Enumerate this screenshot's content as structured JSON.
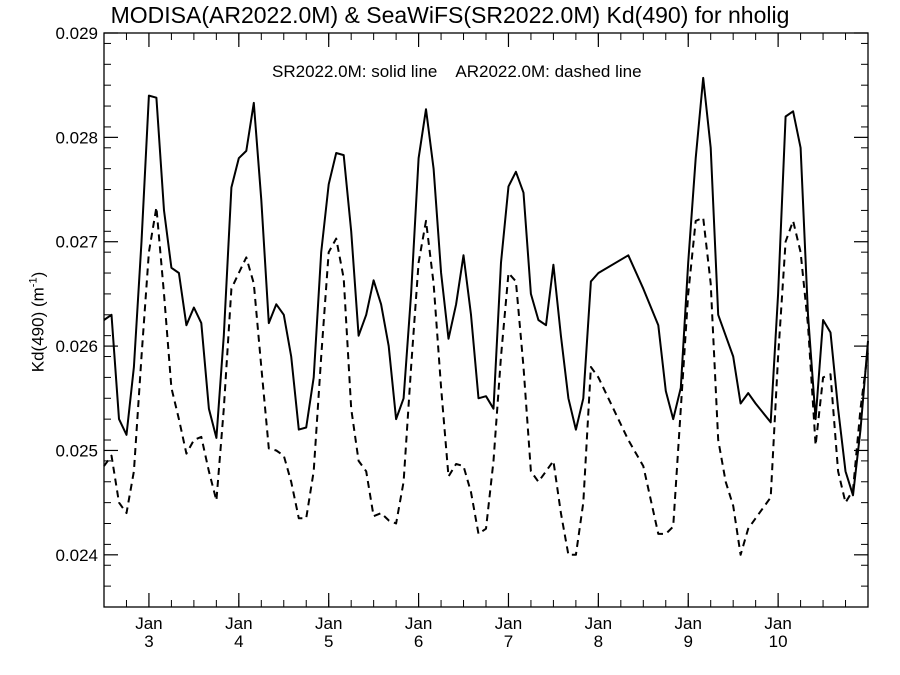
{
  "chart_data": {
    "type": "line",
    "title": "MODISA(AR2022.0M) & SeaWiFS(SR2022.0M)  Kd(490) for nholig",
    "ylabel_main": "Kd(490) (m",
    "ylabel_sup": "-1",
    "ylabel_close": ")",
    "ylim": [
      0.0235,
      0.029
    ],
    "yticks": [
      0.024,
      0.025,
      0.026,
      0.027,
      0.028,
      0.029
    ],
    "ytick_labels": [
      "0.024",
      "0.025",
      "0.026",
      "0.027",
      "0.028",
      "0.029"
    ],
    "xlim": [
      2.5,
      11.0
    ],
    "xticks": [
      3,
      4,
      5,
      6,
      7,
      8,
      9,
      10
    ],
    "xtick_month": "Jan",
    "xtick_labels": [
      "3",
      "4",
      "5",
      "6",
      "7",
      "8",
      "9",
      "10"
    ],
    "annotation_solid": "SR2022.0M: solid line",
    "annotation_dashed": "AR2022.0M: dashed line",
    "grid": false,
    "series": [
      {
        "name": "SR2022.0M",
        "style": "solid",
        "x": [
          2.5,
          2.583,
          2.667,
          2.75,
          2.833,
          2.917,
          3.0,
          3.083,
          3.167,
          3.25,
          3.333,
          3.417,
          3.5,
          3.583,
          3.667,
          3.75,
          3.833,
          3.917,
          4.0,
          4.083,
          4.167,
          4.25,
          4.333,
          4.417,
          4.5,
          4.583,
          4.667,
          4.75,
          4.833,
          4.917,
          5.0,
          5.083,
          5.167,
          5.25,
          5.333,
          5.417,
          5.5,
          5.583,
          5.667,
          5.75,
          5.833,
          5.917,
          6.0,
          6.083,
          6.167,
          6.25,
          6.333,
          6.417,
          6.5,
          6.583,
          6.667,
          6.75,
          6.833,
          6.917,
          7.0,
          7.083,
          7.167,
          7.25,
          7.333,
          7.417,
          7.5,
          7.583,
          7.667,
          7.75,
          7.833,
          7.917,
          8.0,
          8.333,
          8.5,
          8.667,
          8.75,
          8.833,
          8.917,
          9.0,
          9.083,
          9.167,
          9.25,
          9.333,
          9.417,
          9.5,
          9.583,
          9.667,
          9.75,
          9.917,
          10.0,
          10.083,
          10.167,
          10.25,
          10.333,
          10.417,
          10.5,
          10.583,
          10.667,
          10.75,
          10.833,
          10.917,
          11.0
        ],
        "y": [
          0.02625,
          0.0263,
          0.0253,
          0.02515,
          0.0258,
          0.027,
          0.0284,
          0.02838,
          0.0273,
          0.02675,
          0.0267,
          0.0262,
          0.02637,
          0.02622,
          0.0254,
          0.02512,
          0.0261,
          0.02752,
          0.0278,
          0.02787,
          0.02833,
          0.0274,
          0.02622,
          0.0264,
          0.0263,
          0.0259,
          0.0252,
          0.02522,
          0.0257,
          0.0269,
          0.02755,
          0.02785,
          0.02783,
          0.0271,
          0.0261,
          0.0263,
          0.02663,
          0.0264,
          0.026,
          0.0253,
          0.0255,
          0.0265,
          0.0278,
          0.02827,
          0.0277,
          0.0267,
          0.02607,
          0.0264,
          0.02687,
          0.0263,
          0.0255,
          0.02552,
          0.0254,
          0.0268,
          0.02753,
          0.02767,
          0.02747,
          0.0265,
          0.02625,
          0.0262,
          0.02678,
          0.0261,
          0.0255,
          0.0252,
          0.0255,
          0.02662,
          0.0267,
          0.02687,
          0.02655,
          0.0262,
          0.02557,
          0.0253,
          0.0256,
          0.0268,
          0.0278,
          0.02857,
          0.0279,
          0.0263,
          0.0261,
          0.0259,
          0.02545,
          0.02555,
          0.02545,
          0.02527,
          0.0265,
          0.0282,
          0.02825,
          0.0279,
          0.0263,
          0.0253,
          0.02625,
          0.02613,
          0.0254,
          0.0248,
          0.02457,
          0.0252,
          0.02605
        ]
      },
      {
        "name": "AR2022.0M",
        "style": "dashed",
        "x": [
          2.5,
          2.583,
          2.667,
          2.75,
          2.833,
          2.917,
          3.0,
          3.083,
          3.167,
          3.25,
          3.333,
          3.417,
          3.5,
          3.583,
          3.667,
          3.75,
          3.833,
          3.917,
          4.0,
          4.083,
          4.167,
          4.25,
          4.333,
          4.417,
          4.5,
          4.583,
          4.667,
          4.75,
          4.833,
          4.917,
          5.0,
          5.083,
          5.167,
          5.25,
          5.333,
          5.417,
          5.5,
          5.583,
          5.667,
          5.75,
          5.833,
          5.917,
          6.0,
          6.083,
          6.167,
          6.25,
          6.333,
          6.417,
          6.5,
          6.583,
          6.667,
          6.75,
          6.833,
          6.917,
          7.0,
          7.083,
          7.167,
          7.25,
          7.333,
          7.417,
          7.5,
          7.583,
          7.667,
          7.75,
          7.833,
          7.917,
          8.0,
          8.333,
          8.5,
          8.667,
          8.75,
          8.833,
          8.917,
          9.0,
          9.083,
          9.167,
          9.25,
          9.333,
          9.417,
          9.5,
          9.583,
          9.667,
          9.75,
          9.917,
          10.0,
          10.083,
          10.167,
          10.25,
          10.333,
          10.417,
          10.5,
          10.583,
          10.667,
          10.75,
          10.833,
          10.917,
          11.0
        ],
        "y": [
          0.02485,
          0.02495,
          0.0245,
          0.0244,
          0.0248,
          0.0259,
          0.0269,
          0.02733,
          0.0265,
          0.0256,
          0.0253,
          0.02497,
          0.0251,
          0.02513,
          0.0248,
          0.02452,
          0.0254,
          0.02655,
          0.0267,
          0.02685,
          0.0266,
          0.0258,
          0.02502,
          0.025,
          0.02495,
          0.0247,
          0.02435,
          0.02435,
          0.0248,
          0.0259,
          0.0269,
          0.02703,
          0.02665,
          0.0254,
          0.0249,
          0.0248,
          0.02437,
          0.0244,
          0.02433,
          0.0243,
          0.0247,
          0.0258,
          0.0268,
          0.0272,
          0.0266,
          0.0256,
          0.02475,
          0.02487,
          0.02485,
          0.0246,
          0.0242,
          0.02425,
          0.0249,
          0.0259,
          0.0267,
          0.02662,
          0.0258,
          0.0248,
          0.0247,
          0.0248,
          0.0249,
          0.0244,
          0.024,
          0.024,
          0.0245,
          0.0258,
          0.0257,
          0.0251,
          0.02485,
          0.0242,
          0.0242,
          0.02427,
          0.0254,
          0.0265,
          0.0272,
          0.02723,
          0.0266,
          0.0251,
          0.0247,
          0.02447,
          0.024,
          0.02425,
          0.02435,
          0.02455,
          0.0259,
          0.027,
          0.0272,
          0.0269,
          0.0262,
          0.02505,
          0.0257,
          0.02573,
          0.0248,
          0.0245,
          0.02462,
          0.0254,
          0.02595
        ]
      }
    ]
  }
}
